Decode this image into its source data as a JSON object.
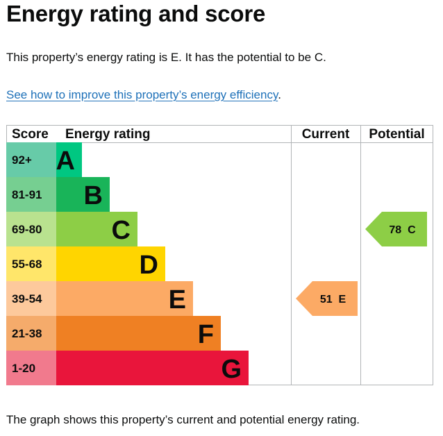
{
  "page": {
    "title": "Energy rating and score",
    "summary": "This property’s energy rating is E. It has the potential to be C.",
    "link_text": "See how to improve this property’s energy efficiency",
    "link_suffix": ".",
    "footer": "The graph shows this property’s current and potential energy rating."
  },
  "chart_data": {
    "type": "bar",
    "headers": {
      "score": "Score",
      "rating": "Energy rating",
      "current": "Current",
      "potential": "Potential"
    },
    "bands": [
      {
        "score": "92+",
        "letter": "A",
        "color": "#00c781",
        "score_bg": "#67cba8",
        "length": 1
      },
      {
        "score": "81-91",
        "letter": "B",
        "color": "#19b459",
        "score_bg": "#76cf91",
        "length": 2
      },
      {
        "score": "69-80",
        "letter": "C",
        "color": "#8dce46",
        "score_bg": "#b9e28f",
        "length": 3
      },
      {
        "score": "55-68",
        "letter": "D",
        "color": "#ffd500",
        "score_bg": "#ffe66a",
        "length": 4
      },
      {
        "score": "39-54",
        "letter": "E",
        "color": "#fcaa65",
        "score_bg": "#fdc99c",
        "length": 5
      },
      {
        "score": "21-38",
        "letter": "F",
        "color": "#ef8023",
        "score_bg": "#f5ab6b",
        "length": 6
      },
      {
        "score": "1-20",
        "letter": "G",
        "color": "#e9153b",
        "score_bg": "#f17a8d",
        "length": 7
      }
    ],
    "current": {
      "score": 51,
      "letter": "E",
      "text": "51  E",
      "color": "#fcaa65"
    },
    "potential": {
      "score": 78,
      "letter": "C",
      "text": "78  C",
      "color": "#8dce46"
    }
  }
}
